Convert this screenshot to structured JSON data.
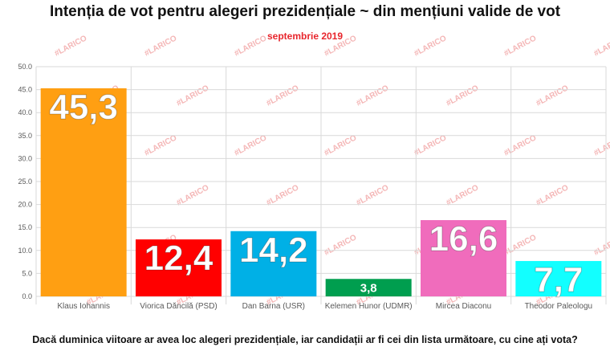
{
  "title": "Intenția de vot pentru alegeri prezidențiale ~ din mențiuni valide de vot",
  "subtitle": "septembrie 2019",
  "question": "Dacă duminica viitoare ar avea loc alegeri prezidențiale, iar candidații ar fi cei din lista următoare, cu cine ați vota?",
  "colors": {
    "subtitle": "#e8262d",
    "grid": "#d9d9d9",
    "axis_text": "#595959",
    "watermark": "#f4b6b6"
  },
  "chart_data": {
    "type": "bar",
    "categories": [
      "Klaus Iohannis",
      "Viorica Dăncilă (PSD)",
      "Dan Barna (USR)",
      "Kelemen Hunor (UDMR)",
      "Mircea Diaconu",
      "Theodor Paleologu"
    ],
    "values": [
      45.3,
      12.4,
      14.2,
      3.8,
      16.6,
      7.7
    ],
    "value_labels": [
      "45,3",
      "12,4",
      "14,2",
      "3,8",
      "16,6",
      "7,7"
    ],
    "bar_colors": [
      "#ff9f12",
      "#ff0000",
      "#00b0e6",
      "#009e4f",
      "#f06cbc",
      "#12ffff"
    ],
    "ylim": [
      0,
      50
    ],
    "yticks": [
      "0.0",
      "5.0",
      "10.0",
      "15.0",
      "20.0",
      "25.0",
      "30.0",
      "35.0",
      "40.0",
      "45.0",
      "50.0"
    ],
    "grid": true,
    "watermark": "#LARICO"
  }
}
